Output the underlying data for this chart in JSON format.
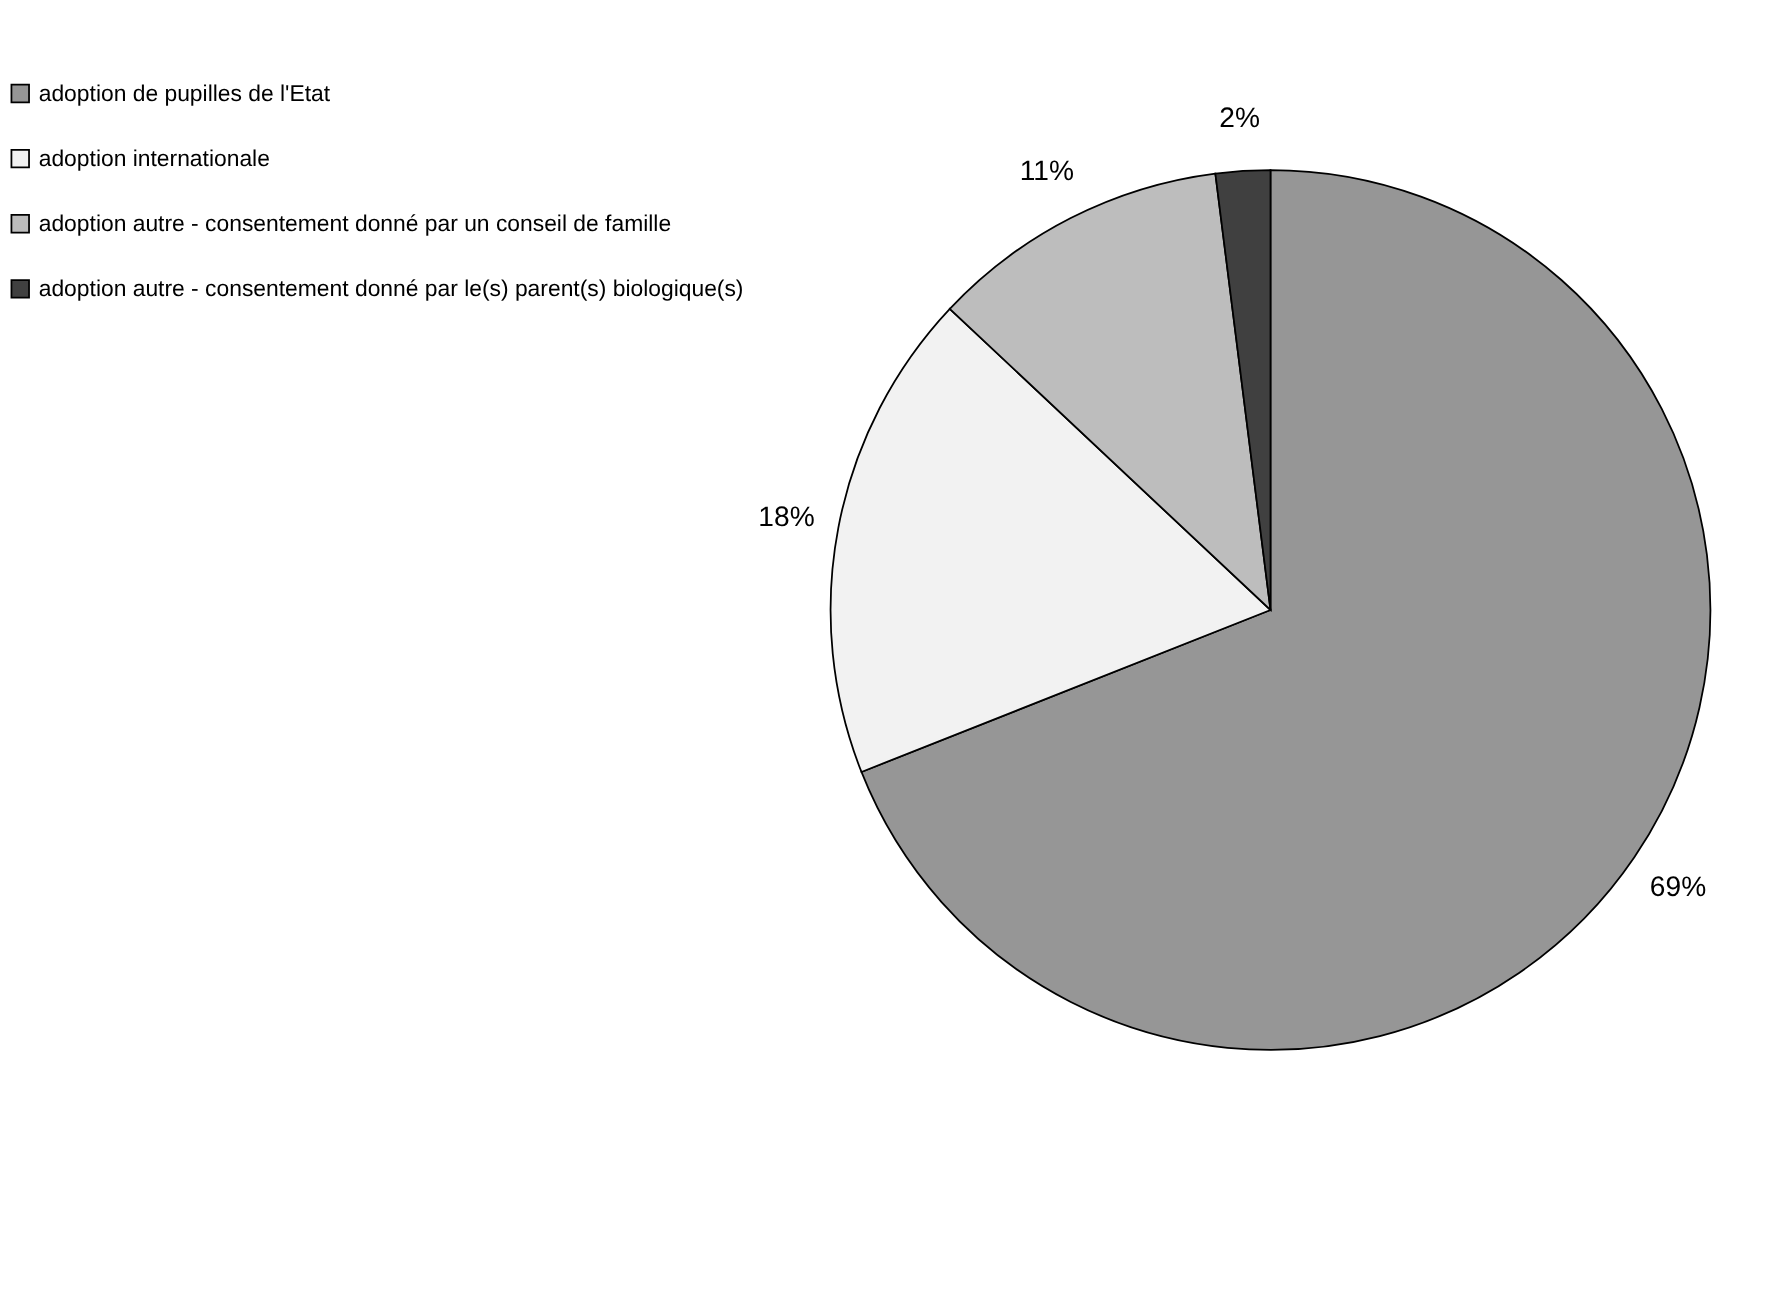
{
  "chart_data": {
    "type": "pie",
    "categories": [
      "adoption de pupilles de l'Etat",
      "adoption internationale",
      "adoption autre - consentement donné par un conseil de famille",
      "adoption autre - consentement donné par le(s) parent(s) biologique(s)"
    ],
    "values": [
      69,
      18,
      11,
      2
    ],
    "colors": [
      "#969696",
      "#f2f2f2",
      "#bdbdbd",
      "#404040"
    ],
    "value_labels": [
      "69%",
      "18%",
      "11%",
      "2%"
    ],
    "legend": "left"
  }
}
